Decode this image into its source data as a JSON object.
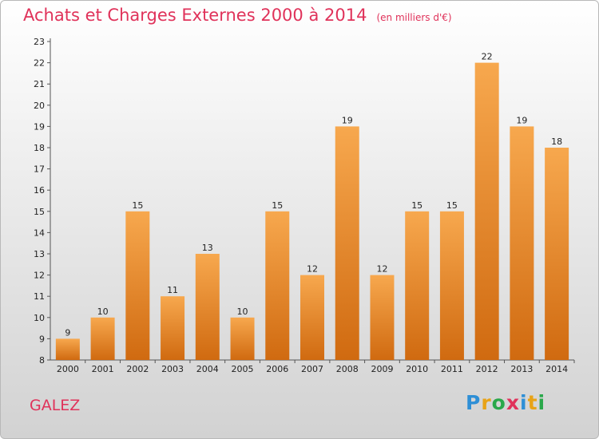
{
  "title": "Achats et Charges Externes 2000 à 2014",
  "unit": "(en milliers d'€)",
  "commune": "GALEZ",
  "logo": {
    "letters": [
      "P",
      "r",
      "o",
      "x",
      "i",
      "t",
      "i"
    ],
    "colors": [
      "#2e8fd6",
      "#e8a317",
      "#2aa84a",
      "#e0325a",
      "#2e8fd6",
      "#e8a317",
      "#2aa84a"
    ]
  },
  "colors": {
    "bar_top": "#f7a84e",
    "bar_bottom": "#d06a10",
    "title": "#e0325a"
  },
  "chart_data": {
    "type": "bar",
    "categories": [
      "2000",
      "2001",
      "2002",
      "2003",
      "2004",
      "2005",
      "2006",
      "2007",
      "2008",
      "2009",
      "2010",
      "2011",
      "2012",
      "2013",
      "2014"
    ],
    "values": [
      9,
      10,
      15,
      11,
      13,
      10,
      15,
      12,
      19,
      12,
      15,
      15,
      22,
      19,
      18
    ],
    "title": "Achats et Charges Externes 2000 à 2014",
    "ylim": [
      8,
      23
    ],
    "yticks": [
      8,
      9,
      10,
      11,
      12,
      13,
      14,
      15,
      16,
      17,
      18,
      19,
      20,
      21,
      22,
      23
    ],
    "grid": false,
    "legend": "none"
  }
}
